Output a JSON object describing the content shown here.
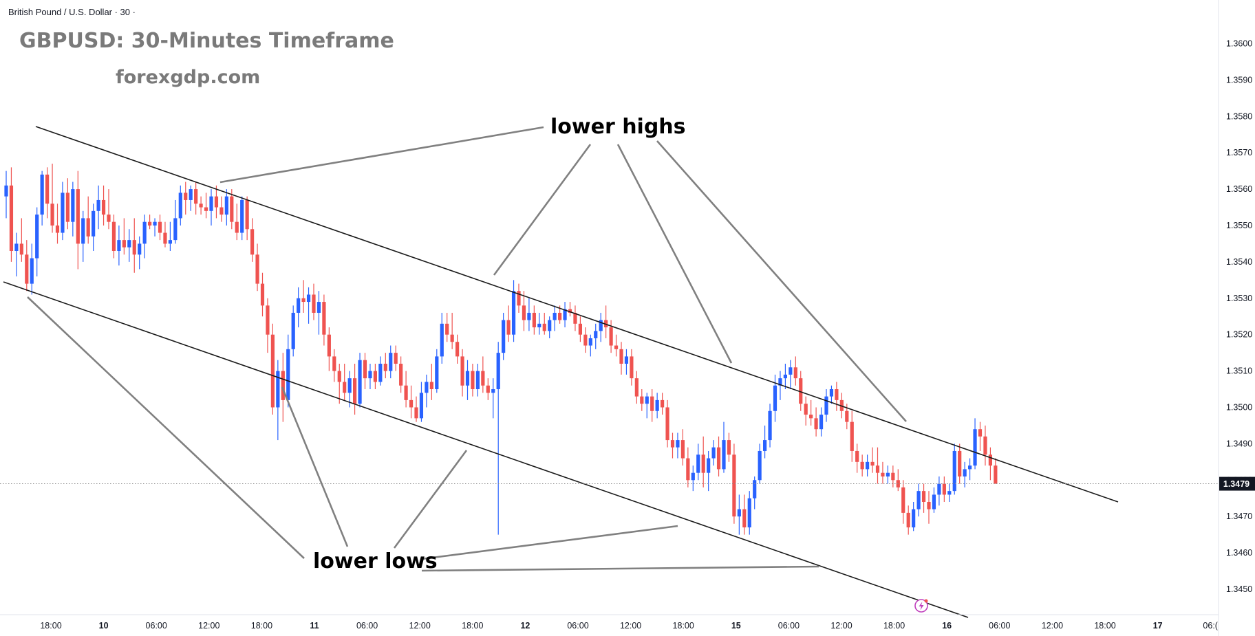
{
  "header": {
    "pair_label": "British Pound / U.S. Dollar · 30 ·",
    "title": "GBPUSD: 30-Minutes Timeframe",
    "website": "forexgdp.com"
  },
  "annotations": {
    "lower_highs": "lower highs",
    "lower_lows": "lower lows"
  },
  "current_price_label": "1.3479",
  "colors": {
    "bull": "#2962ff",
    "bear": "#ef5350",
    "channel_line": "#1a1a1a",
    "pointer_line": "#808080",
    "axis_text": "#131722",
    "price_tag": "#131722",
    "alert_icon": "#c03fbd"
  },
  "icons": {
    "alert": "lightning-alert-icon"
  },
  "chart_data": {
    "type": "candlestick",
    "title": "GBPUSD: 30-Minutes Timeframe",
    "timeframe": "30",
    "ylim": [
      1.3443,
      1.3612
    ],
    "y_ticks": [
      "1.3600",
      "1.3590",
      "1.3580",
      "1.3570",
      "1.3560",
      "1.3550",
      "1.3540",
      "1.3530",
      "1.3520",
      "1.3510",
      "1.3500",
      "1.3490",
      "1.3480",
      "1.3470",
      "1.3460",
      "1.3450"
    ],
    "x_ticks": [
      "18:00",
      "10",
      "06:00",
      "12:00",
      "18:00",
      "11",
      "06:00",
      "12:00",
      "18:00",
      "12",
      "06:00",
      "12:00",
      "18:00",
      "15",
      "06:00",
      "12:00",
      "18:00",
      "16",
      "06:00",
      "12:00",
      "18:00",
      "17",
      "06:("
    ],
    "current_price": 1.3479,
    "candles": [
      [
        1.3558,
        1.3565,
        1.3552,
        1.3561
      ],
      [
        1.3561,
        1.3566,
        1.354,
        1.3543
      ],
      [
        1.3543,
        1.3548,
        1.3536,
        1.3545
      ],
      [
        1.3545,
        1.3552,
        1.354,
        1.3542
      ],
      [
        1.3542,
        1.3546,
        1.3532,
        1.3534
      ],
      [
        1.3534,
        1.3545,
        1.3531,
        1.3541
      ],
      [
        1.3541,
        1.3555,
        1.3536,
        1.3553
      ],
      [
        1.3553,
        1.3565,
        1.355,
        1.3564
      ],
      [
        1.3564,
        1.3566,
        1.3552,
        1.3556
      ],
      [
        1.3556,
        1.3567,
        1.3548,
        1.355
      ],
      [
        1.355,
        1.3556,
        1.3545,
        1.3548
      ],
      [
        1.3548,
        1.3562,
        1.3546,
        1.3559
      ],
      [
        1.3559,
        1.3563,
        1.3549,
        1.3551
      ],
      [
        1.3551,
        1.3562,
        1.3547,
        1.356
      ],
      [
        1.356,
        1.3565,
        1.3538,
        1.3545
      ],
      [
        1.3545,
        1.3554,
        1.354,
        1.3552
      ],
      [
        1.3552,
        1.3558,
        1.3545,
        1.3547
      ],
      [
        1.3547,
        1.3556,
        1.3543,
        1.3554
      ],
      [
        1.3554,
        1.3561,
        1.3549,
        1.3557
      ],
      [
        1.3557,
        1.3561,
        1.355,
        1.3553
      ],
      [
        1.3553,
        1.356,
        1.3549,
        1.3551
      ],
      [
        1.3551,
        1.3553,
        1.3541,
        1.3543
      ],
      [
        1.3543,
        1.355,
        1.3539,
        1.3546
      ],
      [
        1.3546,
        1.3552,
        1.3542,
        1.3544
      ],
      [
        1.3544,
        1.3549,
        1.354,
        1.3546
      ],
      [
        1.3546,
        1.3552,
        1.3537,
        1.3542
      ],
      [
        1.3542,
        1.3547,
        1.3538,
        1.3545
      ],
      [
        1.3545,
        1.3553,
        1.3541,
        1.3551
      ],
      [
        1.3551,
        1.3553,
        1.3549,
        1.355
      ],
      [
        1.355,
        1.3552,
        1.3547,
        1.3551
      ],
      [
        1.3551,
        1.3553,
        1.3546,
        1.3548
      ],
      [
        1.3548,
        1.3551,
        1.3544,
        1.3545
      ],
      [
        1.3545,
        1.3551,
        1.3543,
        1.3546
      ],
      [
        1.3546,
        1.3557,
        1.3545,
        1.3552
      ],
      [
        1.3552,
        1.3561,
        1.355,
        1.3559
      ],
      [
        1.3559,
        1.3562,
        1.3553,
        1.3557
      ],
      [
        1.3557,
        1.3561,
        1.3554,
        1.356
      ],
      [
        1.356,
        1.3562,
        1.3553,
        1.3556
      ],
      [
        1.3556,
        1.3558,
        1.3553,
        1.3555
      ],
      [
        1.3555,
        1.3559,
        1.3552,
        1.3554
      ],
      [
        1.3554,
        1.356,
        1.355,
        1.3558
      ],
      [
        1.3558,
        1.3561,
        1.3552,
        1.3555
      ],
      [
        1.3555,
        1.3558,
        1.3551,
        1.3553
      ],
      [
        1.3553,
        1.356,
        1.355,
        1.3558
      ],
      [
        1.3558,
        1.356,
        1.3549,
        1.3551
      ],
      [
        1.3551,
        1.3556,
        1.3546,
        1.3548
      ],
      [
        1.3548,
        1.3558,
        1.3546,
        1.3557
      ],
      [
        1.3557,
        1.3558,
        1.3546,
        1.3549
      ],
      [
        1.3549,
        1.3552,
        1.354,
        1.3542
      ],
      [
        1.3542,
        1.3545,
        1.3532,
        1.3534
      ],
      [
        1.3534,
        1.3537,
        1.3525,
        1.3528
      ],
      [
        1.3528,
        1.353,
        1.3515,
        1.352
      ],
      [
        1.352,
        1.3523,
        1.3498,
        1.35
      ],
      [
        1.35,
        1.3513,
        1.3491,
        1.351
      ],
      [
        1.351,
        1.3515,
        1.3496,
        1.3502
      ],
      [
        1.3502,
        1.352,
        1.35,
        1.3516
      ],
      [
        1.3516,
        1.3528,
        1.3514,
        1.3526
      ],
      [
        1.3526,
        1.3533,
        1.3522,
        1.353
      ],
      [
        1.353,
        1.3535,
        1.3526,
        1.3529
      ],
      [
        1.3529,
        1.3533,
        1.3523,
        1.3531
      ],
      [
        1.3531,
        1.3534,
        1.3524,
        1.3526
      ],
      [
        1.3526,
        1.3532,
        1.352,
        1.3529
      ],
      [
        1.3529,
        1.3531,
        1.3517,
        1.352
      ],
      [
        1.352,
        1.3522,
        1.351,
        1.3514
      ],
      [
        1.3514,
        1.3516,
        1.3507,
        1.351
      ],
      [
        1.351,
        1.3512,
        1.3501,
        1.3507
      ],
      [
        1.3507,
        1.3512,
        1.3502,
        1.3504
      ],
      [
        1.3504,
        1.351,
        1.35,
        1.3508
      ],
      [
        1.3508,
        1.3512,
        1.3498,
        1.3501
      ],
      [
        1.3501,
        1.3515,
        1.35,
        1.3513
      ],
      [
        1.3513,
        1.3515,
        1.3505,
        1.3508
      ],
      [
        1.3508,
        1.3512,
        1.3505,
        1.351
      ],
      [
        1.351,
        1.3512,
        1.3505,
        1.3507
      ],
      [
        1.3507,
        1.3514,
        1.3506,
        1.3512
      ],
      [
        1.3512,
        1.3515,
        1.3508,
        1.351
      ],
      [
        1.351,
        1.3517,
        1.3508,
        1.3515
      ],
      [
        1.3515,
        1.3517,
        1.351,
        1.3512
      ],
      [
        1.3512,
        1.3514,
        1.3504,
        1.3506
      ],
      [
        1.3506,
        1.351,
        1.35,
        1.3502
      ],
      [
        1.3502,
        1.3506,
        1.3497,
        1.35
      ],
      [
        1.35,
        1.3503,
        1.3496,
        1.3497
      ],
      [
        1.3497,
        1.3507,
        1.3496,
        1.3504
      ],
      [
        1.3504,
        1.3509,
        1.35,
        1.3507
      ],
      [
        1.3507,
        1.3512,
        1.3502,
        1.3505
      ],
      [
        1.3505,
        1.3516,
        1.3504,
        1.3514
      ],
      [
        1.3514,
        1.3526,
        1.3512,
        1.3523
      ],
      [
        1.3523,
        1.3526,
        1.3518,
        1.352
      ],
      [
        1.352,
        1.3526,
        1.3516,
        1.3518
      ],
      [
        1.3518,
        1.352,
        1.3512,
        1.3514
      ],
      [
        1.3514,
        1.3516,
        1.3503,
        1.3506
      ],
      [
        1.3506,
        1.3513,
        1.3502,
        1.351
      ],
      [
        1.351,
        1.3512,
        1.3503,
        1.3505
      ],
      [
        1.3505,
        1.3512,
        1.3503,
        1.351
      ],
      [
        1.351,
        1.3514,
        1.3504,
        1.3506
      ],
      [
        1.3506,
        1.3508,
        1.3502,
        1.3504
      ],
      [
        1.3504,
        1.3508,
        1.3497,
        1.3505
      ],
      [
        1.3505,
        1.3518,
        1.3465,
        1.3515
      ],
      [
        1.3515,
        1.3526,
        1.3513,
        1.3524
      ],
      [
        1.3524,
        1.3528,
        1.3518,
        1.352
      ],
      [
        1.352,
        1.3535,
        1.3518,
        1.3532
      ],
      [
        1.3532,
        1.3534,
        1.3526,
        1.3528
      ],
      [
        1.3528,
        1.3532,
        1.3521,
        1.3524
      ],
      [
        1.3524,
        1.353,
        1.3521,
        1.3526
      ],
      [
        1.3526,
        1.3528,
        1.352,
        1.3522
      ],
      [
        1.3522,
        1.3526,
        1.352,
        1.3523
      ],
      [
        1.3523,
        1.3526,
        1.352,
        1.3521
      ],
      [
        1.3521,
        1.3525,
        1.3519,
        1.3524
      ],
      [
        1.3524,
        1.3528,
        1.3521,
        1.3526
      ],
      [
        1.3526,
        1.3528,
        1.3523,
        1.3524
      ],
      [
        1.3524,
        1.3529,
        1.3522,
        1.3527
      ],
      [
        1.3527,
        1.3529,
        1.3525,
        1.3526
      ],
      [
        1.3526,
        1.3528,
        1.3521,
        1.3523
      ],
      [
        1.3523,
        1.3525,
        1.3518,
        1.352
      ],
      [
        1.352,
        1.3522,
        1.3515,
        1.3517
      ],
      [
        1.3517,
        1.352,
        1.3514,
        1.3519
      ],
      [
        1.3519,
        1.3523,
        1.3516,
        1.3521
      ],
      [
        1.3521,
        1.3526,
        1.3518,
        1.3524
      ],
      [
        1.3524,
        1.3528,
        1.3519,
        1.3522
      ],
      [
        1.3522,
        1.3524,
        1.3515,
        1.3517
      ],
      [
        1.3517,
        1.352,
        1.3514,
        1.3516
      ],
      [
        1.3516,
        1.3518,
        1.3509,
        1.3512
      ],
      [
        1.3512,
        1.3516,
        1.3509,
        1.3514
      ],
      [
        1.3514,
        1.3516,
        1.3506,
        1.3508
      ],
      [
        1.3508,
        1.351,
        1.3501,
        1.3503
      ],
      [
        1.3503,
        1.3505,
        1.3499,
        1.3501
      ],
      [
        1.3501,
        1.3504,
        1.3497,
        1.3503
      ],
      [
        1.3503,
        1.3505,
        1.3496,
        1.3499
      ],
      [
        1.3499,
        1.3504,
        1.3497,
        1.3502
      ],
      [
        1.3502,
        1.3504,
        1.3498,
        1.35
      ],
      [
        1.35,
        1.3502,
        1.3489,
        1.3491
      ],
      [
        1.3491,
        1.3493,
        1.3486,
        1.3489
      ],
      [
        1.3489,
        1.3493,
        1.3486,
        1.3491
      ],
      [
        1.3491,
        1.3494,
        1.3484,
        1.3486
      ],
      [
        1.3486,
        1.3489,
        1.3478,
        1.348
      ],
      [
        1.348,
        1.3484,
        1.3477,
        1.3482
      ],
      [
        1.3482,
        1.349,
        1.348,
        1.3487
      ],
      [
        1.3487,
        1.3492,
        1.3478,
        1.3482
      ],
      [
        1.3482,
        1.3488,
        1.3477,
        1.3486
      ],
      [
        1.3486,
        1.3491,
        1.3484,
        1.3489
      ],
      [
        1.3489,
        1.3492,
        1.3481,
        1.3483
      ],
      [
        1.3483,
        1.3496,
        1.3482,
        1.3491
      ],
      [
        1.3491,
        1.3493,
        1.3485,
        1.3487
      ],
      [
        1.3487,
        1.349,
        1.3468,
        1.347
      ],
      [
        1.347,
        1.3476,
        1.3465,
        1.3472
      ],
      [
        1.3472,
        1.3476,
        1.3465,
        1.3467
      ],
      [
        1.3467,
        1.3477,
        1.3465,
        1.3475
      ],
      [
        1.3475,
        1.3481,
        1.3472,
        1.348
      ],
      [
        1.348,
        1.349,
        1.3479,
        1.3488
      ],
      [
        1.3488,
        1.3495,
        1.3486,
        1.3491
      ],
      [
        1.3491,
        1.3501,
        1.3489,
        1.3499
      ],
      [
        1.3499,
        1.3509,
        1.3496,
        1.3506
      ],
      [
        1.3506,
        1.351,
        1.3502,
        1.3508
      ],
      [
        1.3508,
        1.3512,
        1.3505,
        1.3509
      ],
      [
        1.3509,
        1.3513,
        1.3505,
        1.3511
      ],
      [
        1.3511,
        1.3514,
        1.3506,
        1.3508
      ],
      [
        1.3508,
        1.351,
        1.3499,
        1.3501
      ],
      [
        1.3501,
        1.3503,
        1.3495,
        1.3498
      ],
      [
        1.3498,
        1.3502,
        1.3495,
        1.3497
      ],
      [
        1.3497,
        1.35,
        1.3492,
        1.3494
      ],
      [
        1.3494,
        1.35,
        1.3492,
        1.3498
      ],
      [
        1.3498,
        1.3505,
        1.3496,
        1.3503
      ],
      [
        1.3503,
        1.3506,
        1.3501,
        1.3505
      ],
      [
        1.3505,
        1.3507,
        1.3499,
        1.3502
      ],
      [
        1.3502,
        1.3504,
        1.3497,
        1.3499
      ],
      [
        1.3499,
        1.3501,
        1.3494,
        1.3496
      ],
      [
        1.3496,
        1.3499,
        1.3485,
        1.3488
      ],
      [
        1.3488,
        1.349,
        1.3482,
        1.3485
      ],
      [
        1.3485,
        1.3487,
        1.3481,
        1.3483
      ],
      [
        1.3483,
        1.3487,
        1.3481,
        1.3485
      ],
      [
        1.3485,
        1.3489,
        1.3482,
        1.3484
      ],
      [
        1.3484,
        1.3489,
        1.3479,
        1.3482
      ],
      [
        1.3482,
        1.3485,
        1.3479,
        1.3481
      ],
      [
        1.3481,
        1.3484,
        1.3479,
        1.3482
      ],
      [
        1.3482,
        1.3484,
        1.3478,
        1.348
      ],
      [
        1.348,
        1.3483,
        1.3477,
        1.3478
      ],
      [
        1.3478,
        1.348,
        1.3468,
        1.3471
      ],
      [
        1.3471,
        1.3473,
        1.3465,
        1.3467
      ],
      [
        1.3467,
        1.3474,
        1.3466,
        1.3472
      ],
      [
        1.3472,
        1.3479,
        1.347,
        1.3477
      ],
      [
        1.3477,
        1.3479,
        1.3471,
        1.3474
      ],
      [
        1.3474,
        1.3477,
        1.3468,
        1.3472
      ],
      [
        1.3472,
        1.3478,
        1.3471,
        1.3476
      ],
      [
        1.3476,
        1.3481,
        1.3473,
        1.3479
      ],
      [
        1.3479,
        1.3481,
        1.3474,
        1.3476
      ],
      [
        1.3476,
        1.3479,
        1.3474,
        1.3477
      ],
      [
        1.3477,
        1.349,
        1.3476,
        1.3488
      ],
      [
        1.3488,
        1.349,
        1.3479,
        1.3481
      ],
      [
        1.3481,
        1.3485,
        1.3478,
        1.3483
      ],
      [
        1.3483,
        1.3486,
        1.348,
        1.3484
      ],
      [
        1.3484,
        1.3497,
        1.3483,
        1.3494
      ],
      [
        1.3494,
        1.3496,
        1.3488,
        1.3492
      ],
      [
        1.3492,
        1.3495,
        1.3484,
        1.3487
      ],
      [
        1.3487,
        1.3489,
        1.348,
        1.3484
      ],
      [
        1.3484,
        1.3486,
        1.3479,
        1.3479
      ]
    ]
  }
}
